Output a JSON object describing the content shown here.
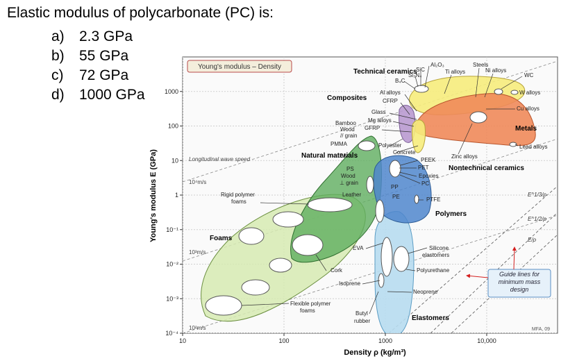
{
  "question": {
    "text": "Elastic modulus of polycarbonate (PC) is:",
    "options": [
      {
        "letter": "a)",
        "text": "2.3 GPa"
      },
      {
        "letter": "b)",
        "text": "55 GPa"
      },
      {
        "letter": "c)",
        "text": "72 GPa"
      },
      {
        "letter": "d)",
        "text": "1000 GPa"
      }
    ]
  },
  "chart_data": {
    "type": "scatter",
    "title": "Young's modulus – Density",
    "xlabel": "Density ρ (kg/m³)",
    "ylabel": "Young's modulus E (GPa)",
    "x_scale": "log",
    "y_scale": "log",
    "xlim": [
      10,
      50000
    ],
    "ylim": [
      0.0001,
      10000
    ],
    "x_ticks": [
      "10",
      "100",
      "1000",
      "10,000"
    ],
    "y_ticks": [
      "10⁻⁴",
      "10⁻³",
      "10⁻²",
      "10⁻¹",
      "1",
      "10",
      "100",
      "1000"
    ],
    "credit": "MFA, 09",
    "wave_speed_label": "Longitudinal wave speed",
    "wave_speed_lines": [
      "10⁴m/s",
      "10³m/s",
      "10²m/s"
    ],
    "guide_line_labels": [
      "E^1/3/ρ",
      "E^1/2/ρ",
      "E/ρ"
    ],
    "guide_box": "Guide lines for minimum mass design",
    "families": [
      {
        "name": "Technical ceramics",
        "color": "#f6ec7c"
      },
      {
        "name": "Metals",
        "color": "#f08a5a"
      },
      {
        "name": "Composites",
        "color": "#b99ad0"
      },
      {
        "name": "Natural materials",
        "color": "#5fae5f"
      },
      {
        "name": "Polymers",
        "color": "#4f86cc"
      },
      {
        "name": "Foams",
        "color": "#c9e39c"
      },
      {
        "name": "Elastomers",
        "color": "#b7dcf0"
      },
      {
        "name": "Nontechnical ceramics",
        "color": "#f6ec7c"
      }
    ],
    "material_labels": [
      "Al₂O₃",
      "SiC",
      "Si₃N₄",
      "B₄C",
      "Steels",
      "Ti alloys",
      "Ni alloys",
      "WC",
      "W alloys",
      "Al alloys",
      "CFRP",
      "Cu alloys",
      "Glass",
      "Mg alloys",
      "GFRP",
      "Bamboo",
      "Wood",
      "// grain",
      "PMMA",
      "Polyester",
      "Concrete",
      "Zinc alloys",
      "Lead alloys",
      "PA",
      "PEEK",
      "PET",
      "PS",
      "Wood",
      "⊥ grain",
      "Epoxies",
      "PC",
      "PP",
      "Leather",
      "PE",
      "PTFE",
      "Rigid polymer",
      "foams",
      "EVA",
      "Silicone",
      "elastomers",
      "Cork",
      "Polyurethane",
      "Isoprene",
      "Neoprene",
      "Flexible polymer",
      "foams",
      "Butyl",
      "rubber"
    ]
  }
}
